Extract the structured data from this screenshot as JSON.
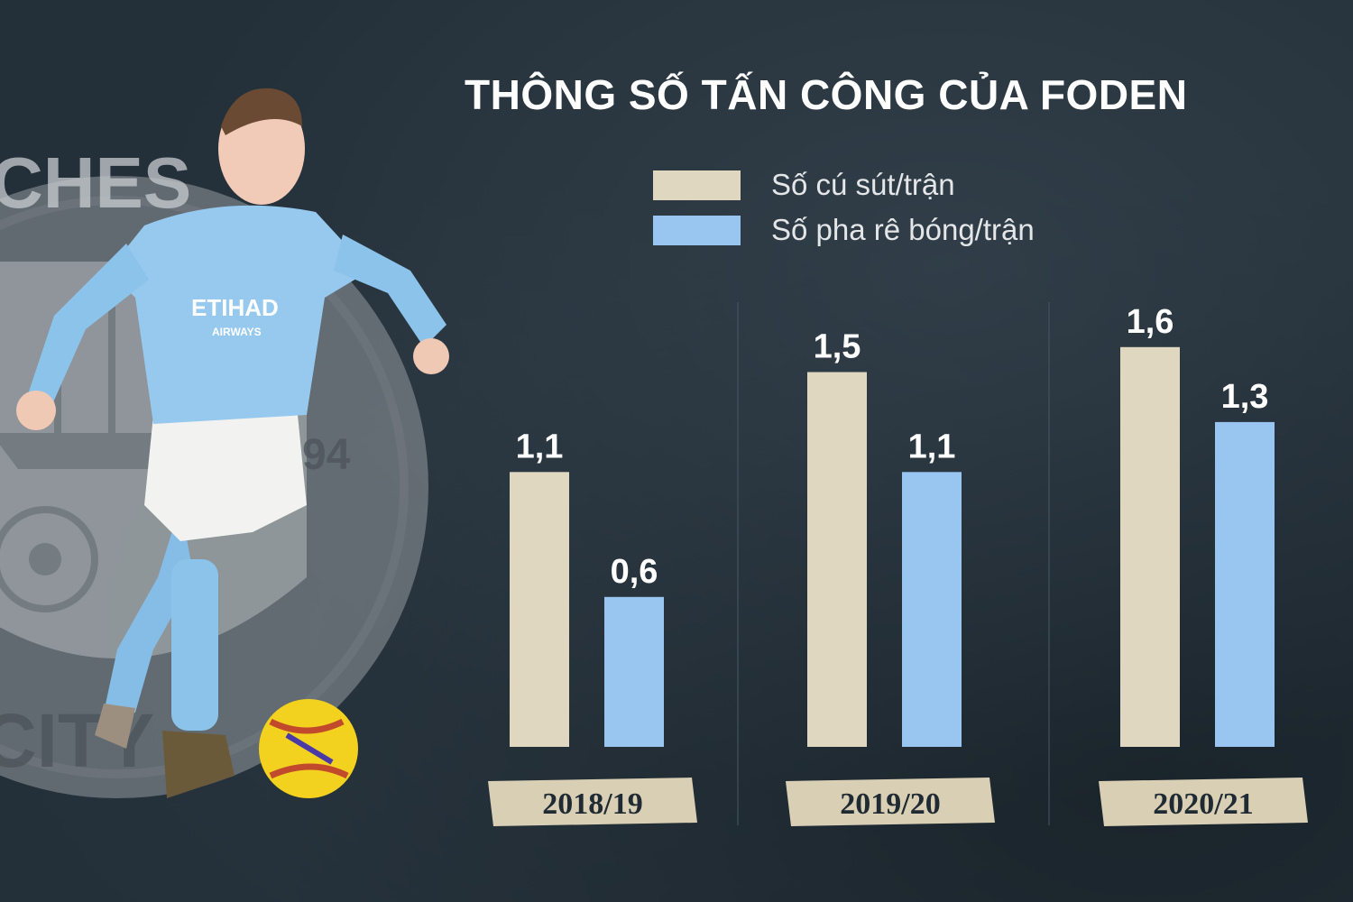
{
  "title": "THÔNG SỐ TẤN CÔNG CỦA FODEN",
  "colors": {
    "shots": "#dfd7bf",
    "dribbles": "#99c6f0",
    "background": "#243039"
  },
  "legend": [
    {
      "label": "Số cú sút/trận",
      "color": "#dfd7bf"
    },
    {
      "label": "Số pha rê bóng/trận",
      "color": "#99c6f0"
    }
  ],
  "crest": {
    "top_text": "CHES",
    "year": "94",
    "bottom_text": "CITY"
  },
  "player": {
    "shirt_text": "ETIHAD",
    "shirt_subtext": "AIRWAYS"
  },
  "chart_data": {
    "type": "bar",
    "title": "THÔNG SỐ TẤN CÔNG CỦA FODEN",
    "categories": [
      "2018/19",
      "2019/20",
      "2020/21"
    ],
    "series": [
      {
        "name": "Số cú sút/trận",
        "values": [
          1.1,
          1.5,
          1.6
        ],
        "labels": [
          "1,1",
          "1,5",
          "1,6"
        ]
      },
      {
        "name": "Số pha rê bóng/trận",
        "values": [
          0.6,
          1.1,
          1.3
        ],
        "labels": [
          "0,6",
          "1,1",
          "1,3"
        ]
      }
    ],
    "xlabel": "",
    "ylabel": "",
    "ylim": [
      0,
      1.8
    ],
    "grid": false,
    "legend_position": "top"
  }
}
